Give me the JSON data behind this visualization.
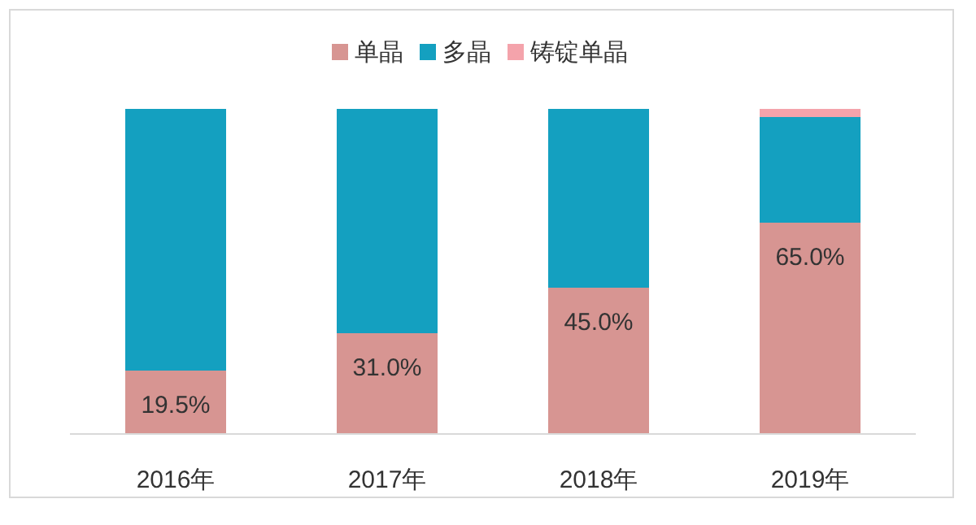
{
  "chart_data": {
    "type": "bar",
    "stacked": true,
    "legend": "top",
    "categories": [
      "2016年",
      "2017年",
      "2018年",
      "2019年"
    ],
    "series": [
      {
        "name": "单晶",
        "color": "#d79592",
        "values": [
          19.5,
          31.0,
          45.0,
          65.0
        ],
        "value_labels": [
          "19.5%",
          "31.0%",
          "45.0%",
          "65.0%"
        ]
      },
      {
        "name": "多晶",
        "color": "#14a0c0",
        "values": [
          80.5,
          69.0,
          55.0,
          32.5
        ]
      },
      {
        "name": "铸锭单晶",
        "color": "#f4a3ab",
        "values": [
          0,
          0,
          0,
          2.5
        ]
      }
    ]
  }
}
